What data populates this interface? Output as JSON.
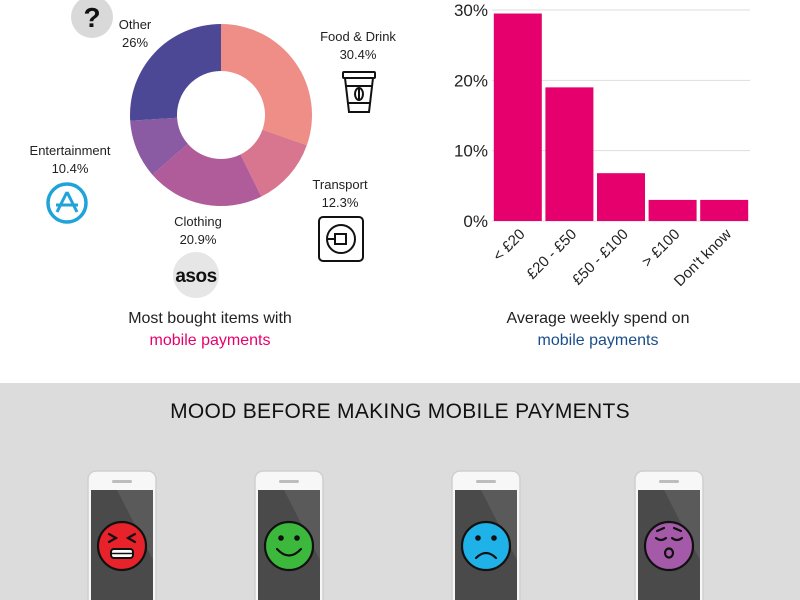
{
  "pie": {
    "slices": [
      {
        "label": "Food & Drink",
        "value_label": "30.4%",
        "value": 30.4,
        "color": "#ee8e87",
        "icon": "coffee-cup-icon"
      },
      {
        "label": "Transport",
        "value_label": "12.3%",
        "value": 12.3,
        "color": "#d9768f",
        "icon": "uber-icon"
      },
      {
        "label": "Clothing",
        "value_label": "20.9%",
        "value": 20.9,
        "color": "#b05c9a",
        "icon": "asos-logo"
      },
      {
        "label": "Entertainment",
        "value_label": "10.4%",
        "value": 10.4,
        "color": "#8a5aa3",
        "icon": "app-store-icon"
      },
      {
        "label": "Other",
        "value_label": "26%",
        "value": 26,
        "color": "#4d4896",
        "icon": "question-icon"
      }
    ],
    "asos_logo_text": "asos",
    "caption_line1": "Most bought items with",
    "caption_line2": "mobile payments"
  },
  "chart_data": [
    {
      "type": "pie",
      "variant": "donut",
      "categories": [
        "Food & Drink",
        "Transport",
        "Clothing",
        "Entertainment",
        "Other"
      ],
      "values": [
        30.4,
        12.3,
        20.9,
        10.4,
        26
      ]
    },
    {
      "type": "bar",
      "categories": [
        "< £20",
        "£20 - £50",
        "£50 - £100",
        "> £100",
        "Don't know"
      ],
      "values": [
        29.5,
        19,
        6.8,
        3,
        3
      ],
      "yticks": [
        "0%",
        "10%",
        "20%",
        "30%"
      ],
      "ylim": [
        0,
        30
      ],
      "grid": true,
      "color": "#e6006e"
    }
  ],
  "bar": {
    "caption_line1": "Average weekly spend on",
    "caption_line2": "mobile payments"
  },
  "mood": {
    "title": "MOOD BEFORE MAKING MOBILE PAYMENTS",
    "faces": [
      {
        "name": "angry-face-icon",
        "color": "#e8222a"
      },
      {
        "name": "happy-face-icon",
        "color": "#3cb83c"
      },
      {
        "name": "sad-face-icon",
        "color": "#1fb2e8"
      },
      {
        "name": "relieved-face-icon",
        "color": "#a45aa8"
      }
    ]
  },
  "colors": {
    "accent_pink": "#e6006e",
    "accent_blue": "#1a4e8a",
    "bottom_bg": "#dcdcdc"
  }
}
